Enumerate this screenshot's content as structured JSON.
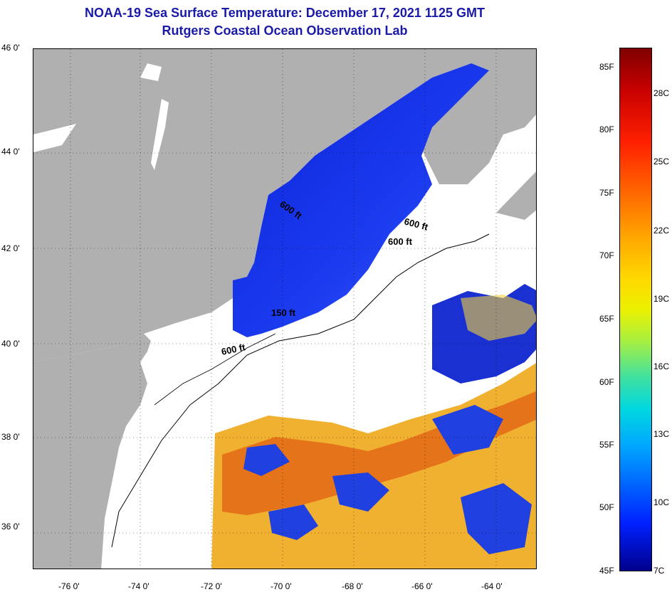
{
  "title": {
    "line1": "NOAA-19 Sea Surface Temperature:  December 17, 2021 1125 GMT",
    "line2": "Rutgers Coastal Ocean Observation Lab"
  },
  "map": {
    "lat_labels": [
      "46 0'",
      "44 0'",
      "42 0'",
      "40 0'",
      "38 0'",
      "36 0'"
    ],
    "lon_labels": [
      "-76 0'",
      "-74 0'",
      "-72 0'",
      "-70 0'",
      "-68 0'",
      "-66 0'",
      "-64 0'"
    ],
    "contour_labels": [
      "600 ft",
      "600 ft",
      "600 ft",
      "150 ft",
      "600 ft"
    ],
    "colors": {
      "land": "#b0b0b0",
      "cloud": "#ffffff",
      "cold_water": "#1428e6",
      "warm_water": "#f0b030"
    }
  },
  "colorbar": {
    "fahrenheit_labels": [
      "85F",
      "80F",
      "75F",
      "70F",
      "65F",
      "60F",
      "55F",
      "50F",
      "45F"
    ],
    "celsius_labels": [
      "28C",
      "25C",
      "22C",
      "19C",
      "16C",
      "13C",
      "10C",
      "7C"
    ]
  }
}
